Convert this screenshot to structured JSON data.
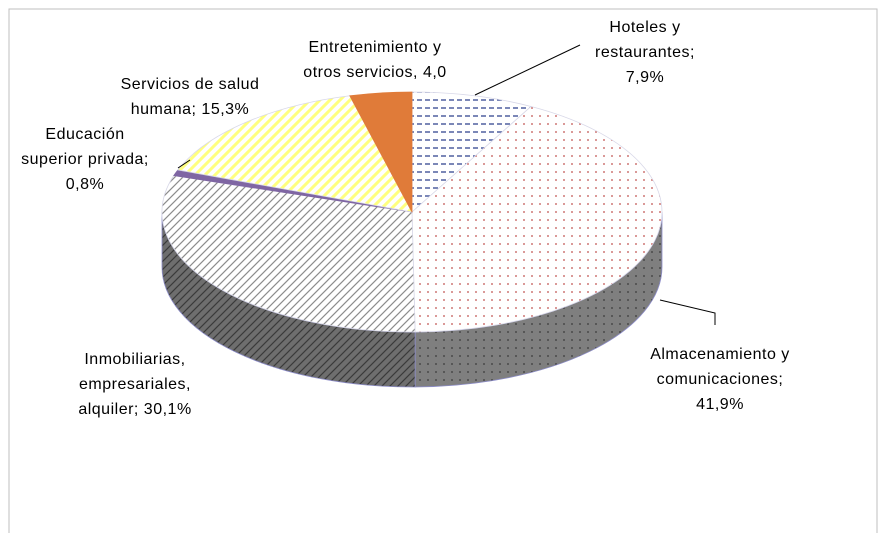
{
  "chart_data": {
    "type": "pie",
    "values": [
      7.9,
      41.9,
      30.1,
      0.8,
      15.3,
      4.0
    ],
    "value_labels": [
      [
        "Hoteles y",
        "restaurantes;",
        "7,9%"
      ],
      [
        "Almacenamiento y",
        "comunicaciones;",
        "41,9%"
      ],
      [
        "Inmobiliarias,",
        "empresariales,",
        "alquiler; 30,1%"
      ],
      [
        "Educación",
        "superior privada;",
        "0,8%"
      ],
      [
        "Servicios de salud",
        "humana; 15,3%"
      ],
      [
        "Entretenimiento y",
        "otros servicios, 4,0"
      ]
    ],
    "colors": [
      "#4f5f9f",
      "#c0504d",
      "#8c8c8c",
      "#7f66a3",
      "#ffff80",
      "#e07b39"
    ],
    "patterns": [
      "dashes",
      "dots",
      "hatch",
      "solid",
      "stripes",
      "solid"
    ]
  }
}
